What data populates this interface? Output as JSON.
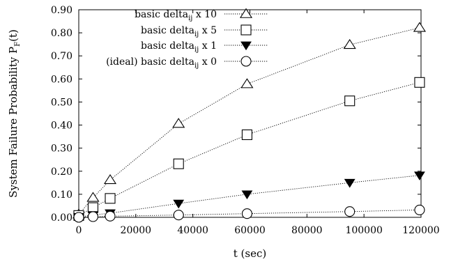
{
  "chart_data": {
    "type": "line",
    "xlabel": "t (sec)",
    "ylabel": "System Failure Probability P_F(t)",
    "ylabel_main": "System Failure Probability P",
    "ylabel_sub": "F",
    "ylabel_tail": "(t)",
    "xlim": [
      0,
      120000
    ],
    "ylim": [
      0,
      0.9
    ],
    "x_ticks": [
      0,
      20000,
      40000,
      60000,
      80000,
      100000,
      120000
    ],
    "x_tick_labels": [
      "0",
      "20000",
      "40000",
      "60000",
      "80000",
      "100000",
      "120000"
    ],
    "y_ticks": [
      0,
      0.1,
      0.2,
      0.3,
      0.4,
      0.5,
      0.6,
      0.7,
      0.8,
      0.9
    ],
    "y_tick_labels": [
      "0.00",
      "0.10",
      "0.20",
      "0.30",
      "0.40",
      "0.50",
      "0.60",
      "0.70",
      "0.80",
      "0.90"
    ],
    "grid": false,
    "legend_position": "top-left",
    "x": [
      0,
      5000,
      11000,
      35000,
      59000,
      95000,
      119500
    ],
    "series": [
      {
        "name": "basic delta_ij x 10",
        "label_pre": "basic delta",
        "label_sub": "ij",
        "label_post": " x 10",
        "marker": "triangle-up-open",
        "values": [
          0.013,
          0.085,
          0.162,
          0.406,
          0.578,
          0.748,
          0.822
        ]
      },
      {
        "name": "basic delta_ij x 5",
        "label_pre": "basic delta",
        "label_sub": "ij",
        "label_post": " x 5",
        "marker": "square-open",
        "values": [
          0.008,
          0.042,
          0.082,
          0.232,
          0.358,
          0.505,
          0.585
        ]
      },
      {
        "name": "basic delta_ij x 1",
        "label_pre": "basic delta",
        "label_sub": "ij",
        "label_post": " x 1",
        "marker": "triangle-down-filled",
        "values": [
          0.002,
          0.01,
          0.018,
          0.06,
          0.1,
          0.15,
          0.182
        ]
      },
      {
        "name": "(ideal) basic delta_ij x 0",
        "label_pre": "(ideal) basic delta",
        "label_sub": "ij",
        "label_post": " x 0",
        "marker": "circle-open",
        "values": [
          0.0,
          0.003,
          0.005,
          0.01,
          0.016,
          0.025,
          0.032
        ]
      }
    ]
  }
}
